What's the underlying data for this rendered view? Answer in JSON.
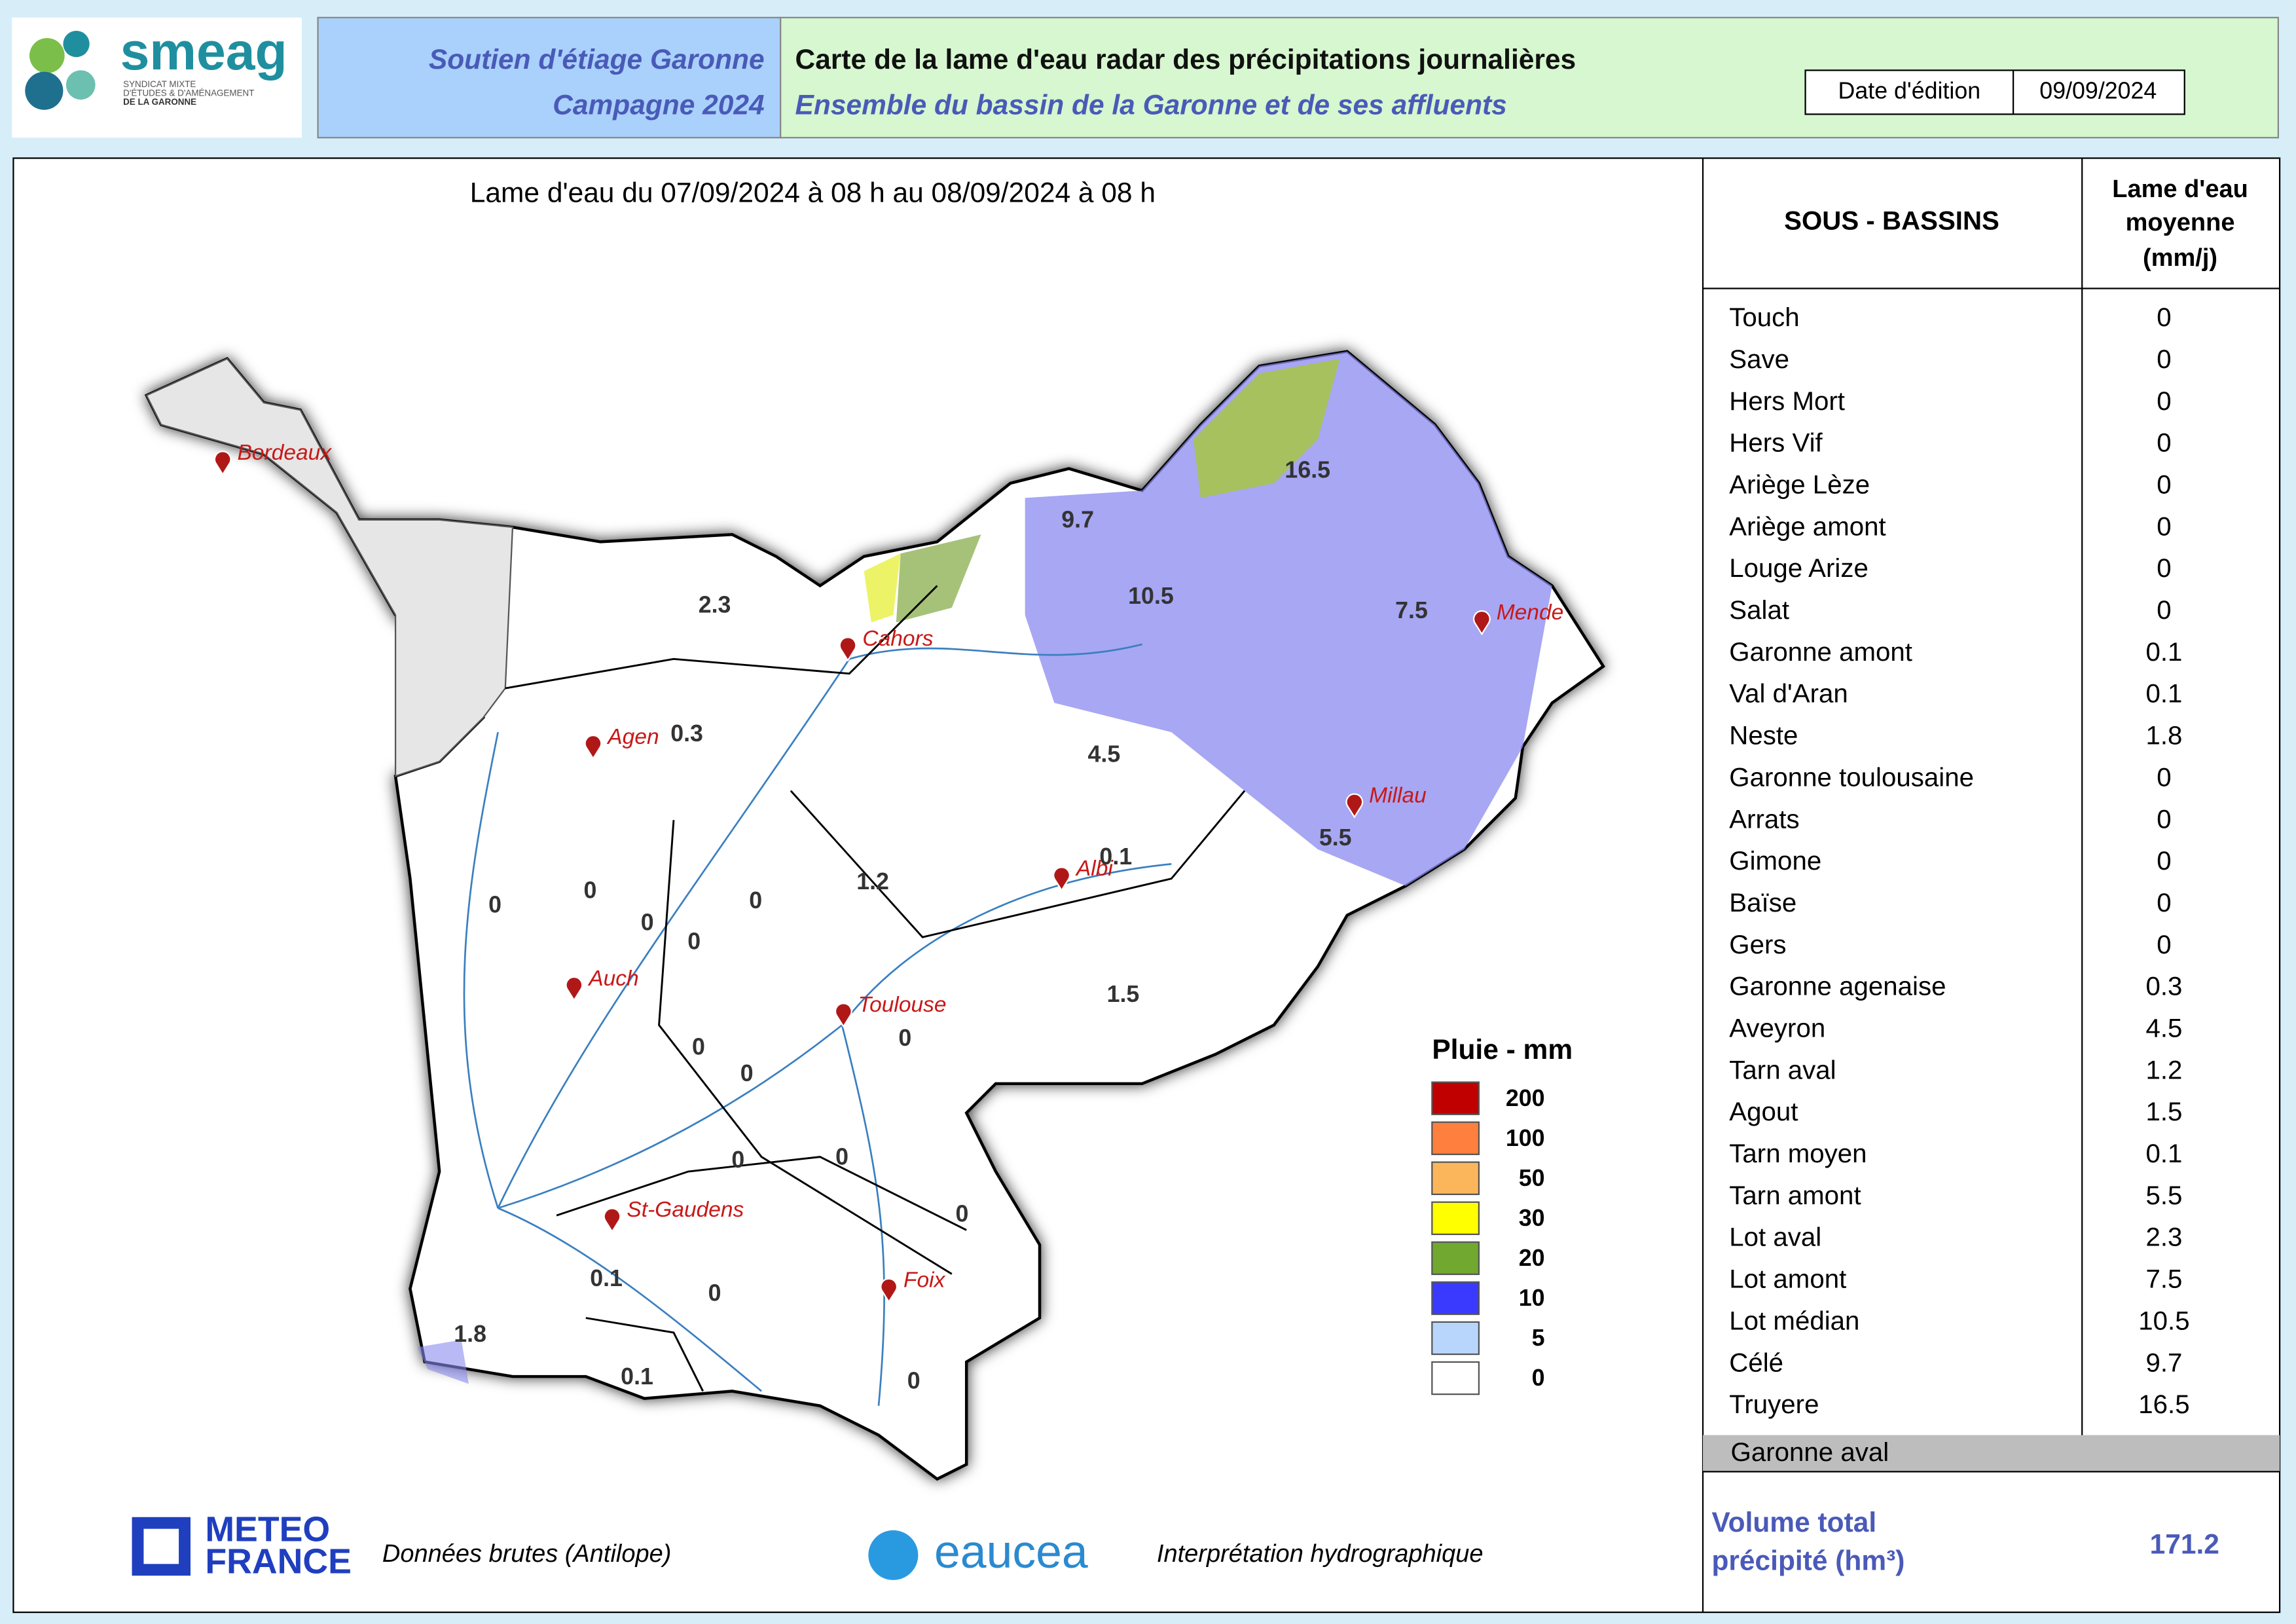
{
  "header": {
    "logo": "smeag",
    "tagline": [
      "SYNDICAT MIXTE",
      "D'ÉTUDES & D'AMÉNAGEMENT",
      "DE LA GARONNE"
    ],
    "program": "Soutien d'étiage Garonne",
    "campaign": "Campagne 2024",
    "title": "Carte de la lame d'eau radar des précipitations journalières",
    "subtitle": "Ensemble du bassin de la Garonne et de ses affluents",
    "date_label": "Date d'édition",
    "date": "09/09/2024"
  },
  "map": {
    "period": "Lame d'eau du 07/09/2024  à 08 h au  08/09/2024  à 08 h",
    "cities": [
      "Bordeaux",
      "Cahors",
      "Agen",
      "Mende",
      "Millau",
      "Albi",
      "Auch",
      "Toulouse",
      "St-Gaudens",
      "Foix"
    ],
    "basin_values": [
      9.7,
      16.5,
      10.5,
      7.5,
      2.3,
      0.3,
      4.5,
      5.5,
      0.1,
      1.2,
      0,
      0,
      0,
      0,
      0,
      1.5,
      0,
      0,
      0,
      0,
      0,
      0,
      0.1,
      0,
      1.8,
      0.1,
      0
    ],
    "legend": {
      "title": "Pluie - mm",
      "classes": [
        {
          "value": 200,
          "color": "#c00000"
        },
        {
          "value": 100,
          "color": "#ff7f3f"
        },
        {
          "value": 50,
          "color": "#fbb65c"
        },
        {
          "value": 30,
          "color": "#ffff00"
        },
        {
          "value": 20,
          "color": "#70a830"
        },
        {
          "value": 10,
          "color": "#3a3aff"
        },
        {
          "value": 5,
          "color": "#b8d6fb"
        },
        {
          "value": 0,
          "color": "#ffffff"
        }
      ]
    }
  },
  "table": {
    "header_basins": "SOUS - BASSINS",
    "header_value": [
      "Lame d'eau",
      "moyenne",
      "(mm/j)"
    ],
    "rows": [
      [
        "Touch",
        0
      ],
      [
        "Save",
        0
      ],
      [
        "Hers Mort",
        0
      ],
      [
        "Hers Vif",
        0
      ],
      [
        "Ariège Lèze",
        0
      ],
      [
        "Ariège amont",
        0
      ],
      [
        "Louge Arize",
        0
      ],
      [
        "Salat",
        0
      ],
      [
        "Garonne amont",
        0.1
      ],
      [
        "Val d'Aran",
        0.1
      ],
      [
        "Neste",
        1.8
      ],
      [
        "Garonne toulousaine",
        0
      ],
      [
        "Arrats",
        0
      ],
      [
        "Gimone",
        0
      ],
      [
        "Baïse",
        0
      ],
      [
        "Gers",
        0
      ],
      [
        "Garonne agenaise",
        0.3
      ],
      [
        "Aveyron",
        4.5
      ],
      [
        "Tarn aval",
        1.2
      ],
      [
        "Agout",
        1.5
      ],
      [
        "Tarn moyen",
        0.1
      ],
      [
        "Tarn amont",
        5.5
      ],
      [
        "Lot aval",
        2.3
      ],
      [
        "Lot amont",
        7.5
      ],
      [
        "Lot médian",
        10.5
      ],
      [
        "Célé",
        9.7
      ],
      [
        "Truyere",
        16.5
      ]
    ],
    "last_row": "Garonne aval",
    "total_label": [
      "Volume total",
      "précipité (hm³)"
    ],
    "total": 171.2
  },
  "footer": {
    "meteo_logo": [
      "METEO",
      "FRANCE"
    ],
    "meteo_note": "Données brutes (Antilope)",
    "eaucea_logo": "eaucea",
    "eaucea_note": "Interprétation hydrographique"
  }
}
